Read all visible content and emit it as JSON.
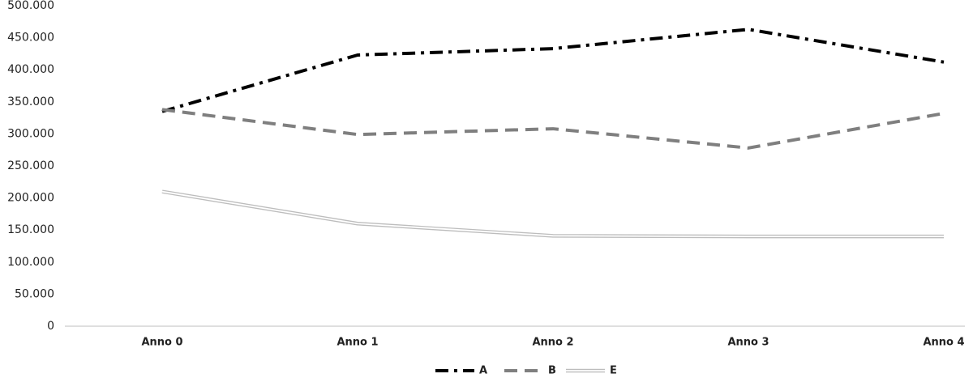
{
  "chart_data": {
    "type": "line",
    "categories": [
      "Anno 0",
      "Anno 1",
      "Anno 2",
      "Anno 3",
      "Anno 4"
    ],
    "series": [
      {
        "name": "A",
        "color": "#000000",
        "style": "dash-dot",
        "values": [
          335000,
          423000,
          433000,
          463000,
          412000
        ]
      },
      {
        "name": "B",
        "color": "#7f7f7f",
        "style": "dashed",
        "values": [
          338000,
          299000,
          308000,
          278000,
          332000
        ]
      },
      {
        "name": "E",
        "color": "#ffffff",
        "style": "double",
        "values": [
          210000,
          160000,
          141000,
          140000,
          140000
        ]
      }
    ],
    "ylim": [
      0,
      500000
    ],
    "yticks": [
      0,
      {
        "value": 50000,
        "label": "50.000"
      },
      {
        "value": 100000,
        "label": "100.000"
      },
      {
        "value": 150000,
        "label": "150.000"
      },
      {
        "value": 200000,
        "label": "200.000"
      },
      {
        "value": 250000,
        "label": "250.000"
      },
      {
        "value": 300000,
        "label": "300.000"
      },
      {
        "value": 350000,
        "label": "350.000"
      },
      {
        "value": 400000,
        "label": "400.000"
      },
      {
        "value": 450000,
        "label": "450.000"
      },
      {
        "value": 500000,
        "label": "500.000"
      }
    ],
    "grid": false,
    "legend": "bottom"
  }
}
